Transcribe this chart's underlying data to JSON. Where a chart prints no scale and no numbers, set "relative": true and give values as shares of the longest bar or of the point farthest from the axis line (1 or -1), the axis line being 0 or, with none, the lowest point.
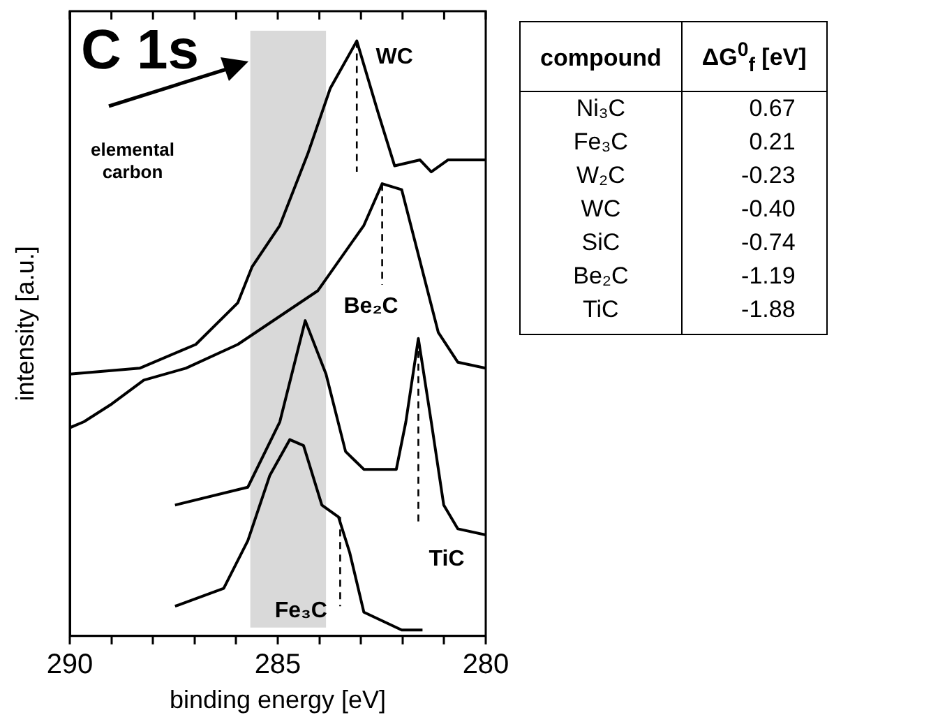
{
  "chart_data": [
    {
      "type": "line",
      "title": "C 1s",
      "xlabel": "binding energy [eV]",
      "ylabel": "intensity [a.u.]",
      "relative": true,
      "tick_labels": "x",
      "grid": false,
      "marker": "none",
      "xlim": [
        290,
        280
      ],
      "xticks": [
        290,
        {
          "value": 289,
          "label": null
        },
        {
          "value": 288,
          "label": null
        },
        {
          "value": 287,
          "label": null
        },
        {
          "value": 286,
          "label": null
        },
        285,
        {
          "value": 284,
          "label": null
        },
        {
          "value": 283,
          "label": null
        },
        {
          "value": 282,
          "label": null
        },
        {
          "value": 281,
          "label": null
        },
        280
      ],
      "bands": [
        {
          "axis": "x",
          "from": 285.66,
          "to": 283.84,
          "color": "#d9d9d9"
        }
      ],
      "series": [
        {
          "name": "WC",
          "color": "#000000",
          "x": [
            290,
            288.32,
            286.97,
            285.96,
            285.62,
            284.95,
            284.28,
            283.74,
            283.1,
            282.59,
            282.19,
            281.58,
            281.31,
            280.91,
            280.4,
            280
          ],
          "values": [
            0.44,
            0.45,
            0.49,
            0.56,
            0.62,
            0.69,
            0.81,
            0.92,
            1.0,
            0.88,
            0.79,
            0.8,
            0.78,
            0.8,
            0.8,
            0.8
          ]
        },
        {
          "name": "Be₂C",
          "color": "#000000",
          "x": [
            290,
            289.66,
            288.99,
            288.22,
            287.21,
            285.96,
            284.04,
            282.93,
            282.49,
            282.02,
            281.58,
            281.14,
            280.67,
            280
          ],
          "values": [
            0.35,
            0.36,
            0.39,
            0.43,
            0.45,
            0.49,
            0.58,
            0.69,
            0.76,
            0.75,
            0.63,
            0.51,
            0.46,
            0.45
          ]
        },
        {
          "name": "TiC",
          "color": "#000000",
          "x": [
            287.47,
            285.72,
            284.95,
            284.34,
            283.84,
            283.37,
            282.93,
            282.15,
            281.92,
            281.62,
            281.31,
            281.01,
            280.67,
            280
          ],
          "values": [
            0.22,
            0.25,
            0.36,
            0.53,
            0.44,
            0.31,
            0.28,
            0.28,
            0.36,
            0.5,
            0.36,
            0.22,
            0.18,
            0.17
          ]
        },
        {
          "name": "Fe₃C",
          "color": "#000000",
          "x": [
            287.47,
            286.3,
            285.72,
            285.19,
            284.71,
            284.38,
            283.94,
            283.54,
            283.27,
            282.93,
            282.02,
            281.52
          ],
          "values": [
            0.05,
            0.08,
            0.16,
            0.27,
            0.33,
            0.32,
            0.22,
            0.2,
            0.14,
            0.04,
            0.01,
            0.01
          ]
        },
        {
          "color": "#000000",
          "line_style": "dashed",
          "x": [
            283.1,
            283.1
          ],
          "values": [
            1.0,
            0.78
          ]
        },
        {
          "color": "#000000",
          "line_style": "dashed",
          "x": [
            282.49,
            282.49
          ],
          "values": [
            0.76,
            0.59
          ]
        },
        {
          "color": "#000000",
          "line_style": "dashed",
          "x": [
            281.62,
            281.62
          ],
          "values": [
            0.5,
            0.19
          ]
        },
        {
          "color": "#000000",
          "line_style": "dashed",
          "x": [
            283.5,
            283.5
          ],
          "values": [
            0.2,
            0.05
          ]
        }
      ],
      "annotations": [
        "elemental carbon"
      ]
    },
    {
      "type": "other",
      "xlabel": "compound",
      "ylabel": "ΔG$^{0}$$_{f}$ [eV]",
      "value_labels": [
        "0.67",
        "0.21",
        "-0.23",
        "-0.40",
        "-0.74",
        "-1.19",
        "-1.88"
      ],
      "categories": [
        "Ni₃C",
        "Fe₃C",
        "W₂C",
        "WC",
        "SiC",
        "Be₂C",
        "TiC"
      ],
      "values": [
        0.67,
        0.21,
        -0.23,
        -0.4,
        -0.74,
        -1.19,
        -1.88
      ]
    }
  ]
}
